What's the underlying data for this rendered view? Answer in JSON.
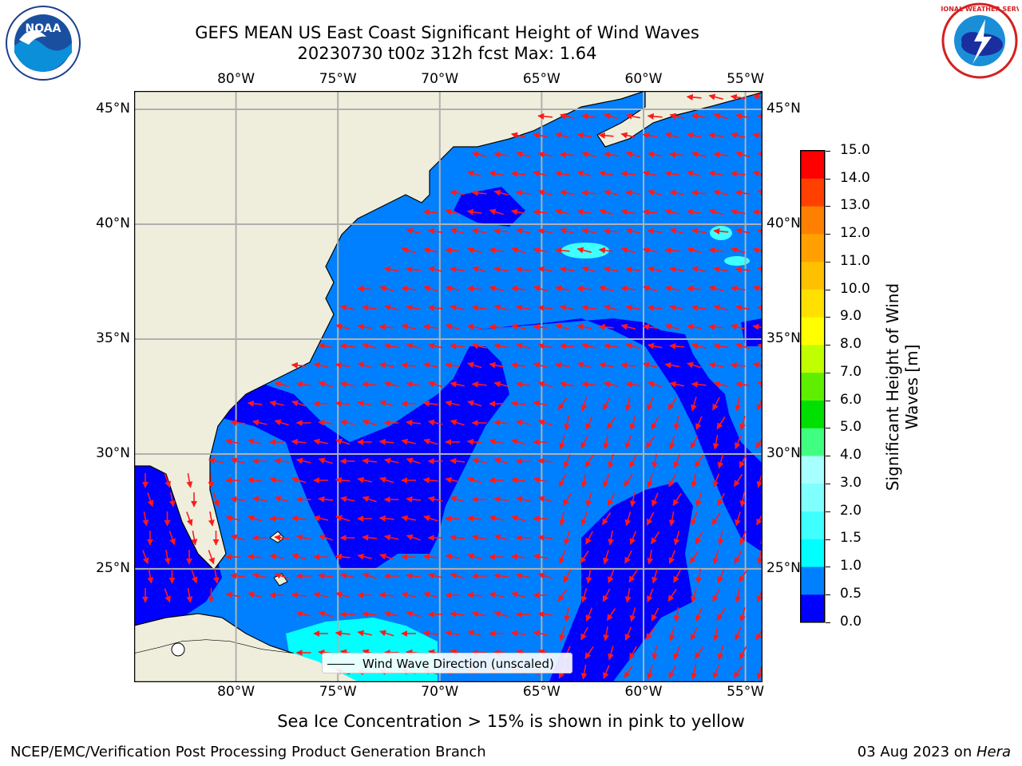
{
  "header": {
    "title_line1": "GEFS MEAN US East Coast Significant Height of Wind Waves",
    "title_line2": "20230730 t00z 312h fcst   Max: 1.64"
  },
  "logos": {
    "left": "NOAA",
    "right": "NATIONAL WEATHER SERVICE"
  },
  "map": {
    "lon_labels": [
      "80°W",
      "75°W",
      "70°W",
      "65°W",
      "60°W",
      "55°W"
    ],
    "lat_labels": [
      "45°N",
      "40°N",
      "35°N",
      "30°N",
      "25°N"
    ],
    "lon_values": [
      -80,
      -75,
      -70,
      -65,
      -60,
      -55
    ],
    "lat_values": [
      45,
      40,
      35,
      30,
      25
    ],
    "extent": {
      "lon_min": -85,
      "lon_max": -54.2,
      "lat_min": 20.1,
      "lat_max": 45.8
    },
    "legend_label": "Wind Wave Direction (unscaled)",
    "land_color": "#efeedc",
    "arrow_color": "#ff1a1a"
  },
  "colorbar": {
    "label": "Significant Height of Wind Waves [m]",
    "ticks": [
      "0.0",
      "0.5",
      "1.0",
      "1.5",
      "2.0",
      "3.0",
      "4.0",
      "5.0",
      "6.0",
      "7.0",
      "8.0",
      "9.0",
      "10.0",
      "11.0",
      "12.0",
      "13.0",
      "14.0",
      "15.0"
    ],
    "colors": [
      "#0000ff",
      "#0080ff",
      "#00ffff",
      "#40ffff",
      "#80ffff",
      "#a8ffff",
      "#40ff80",
      "#00e000",
      "#60ee00",
      "#c0ff00",
      "#ffff00",
      "#ffe000",
      "#ffc000",
      "#ffa000",
      "#ff8000",
      "#ff4000",
      "#ff0000"
    ]
  },
  "notes": {
    "sea_ice": "Sea Ice Concentration > 15% is shown in pink to yellow"
  },
  "footer": {
    "left": "NCEP/EMC/Verification Post Processing Product Generation Branch",
    "right_date": "03 Aug 2023 on ",
    "right_host": "Hera"
  }
}
